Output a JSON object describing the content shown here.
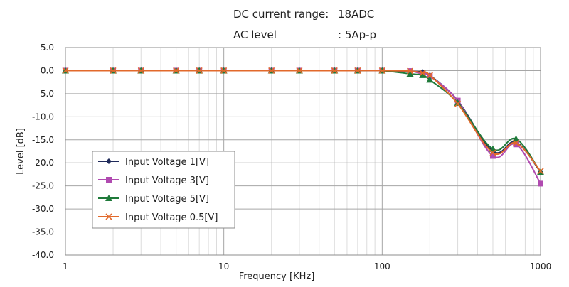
{
  "chart_data": {
    "type": "line",
    "title_lines": [
      {
        "label": "DC current range:",
        "value": "18ADC"
      },
      {
        "label": "AC level",
        "value": ": 5Ap-p"
      }
    ],
    "xlabel": "Frequency [KHz]",
    "ylabel": "Level [dB]",
    "xscale": "log",
    "xlim": [
      1,
      1000
    ],
    "ylim": [
      -40,
      5
    ],
    "x_tick_labels": [
      "1",
      "10",
      "100",
      "1000"
    ],
    "y_tick_labels": [
      "5.0",
      "0.0",
      "-5.0",
      "-10.0",
      "-15.0",
      "-20.0",
      "-25.0",
      "-30.0",
      "-35.0",
      "-40.0"
    ],
    "grid": true,
    "legend_position": "lower-left",
    "series": [
      {
        "name": "Input Voltage  1[V]",
        "color": "#1f2a5a",
        "marker": "diamond",
        "x": [
          1,
          2,
          3,
          5,
          7,
          10,
          20,
          30,
          50,
          70,
          100,
          150,
          180,
          200,
          300,
          500,
          700,
          1000
        ],
        "y": [
          0,
          0,
          0,
          0,
          0,
          0,
          0,
          0,
          0,
          0,
          0,
          -0.2,
          -0.3,
          -1.0,
          -6.5,
          -17.5,
          -15.5,
          -22.0
        ]
      },
      {
        "name": "Input Voltage  3[V]",
        "color": "#b04ab0",
        "marker": "square",
        "x": [
          1,
          2,
          3,
          5,
          7,
          10,
          20,
          30,
          50,
          70,
          100,
          150,
          180,
          200,
          300,
          500,
          700,
          1000
        ],
        "y": [
          0,
          0,
          0,
          0,
          0,
          0,
          0,
          0,
          0,
          0,
          0,
          -0.1,
          -0.8,
          -1.2,
          -6.5,
          -18.5,
          -16.0,
          -24.5
        ]
      },
      {
        "name": "Input Voltage  5[V]",
        "color": "#1f7a3a",
        "marker": "triangle",
        "x": [
          1,
          2,
          3,
          5,
          7,
          10,
          20,
          30,
          50,
          70,
          100,
          150,
          180,
          200,
          300,
          500,
          700,
          1000
        ],
        "y": [
          0,
          0,
          0,
          0,
          0,
          0,
          0,
          0,
          0,
          0,
          0,
          -0.7,
          -1.0,
          -2.0,
          -7.0,
          -17.0,
          -14.8,
          -22.0
        ]
      },
      {
        "name": "Input Voltage  0.5[V]",
        "color": "#e2692b",
        "marker": "x",
        "x": [
          1,
          2,
          3,
          5,
          7,
          10,
          20,
          30,
          50,
          70,
          100,
          150,
          180,
          200,
          300,
          500,
          700,
          1000
        ],
        "y": [
          0,
          0,
          0,
          0,
          0,
          0,
          0,
          0,
          0,
          0,
          0,
          -0.1,
          -0.5,
          -1.0,
          -7.2,
          -17.8,
          -15.7,
          -21.8
        ]
      }
    ]
  }
}
